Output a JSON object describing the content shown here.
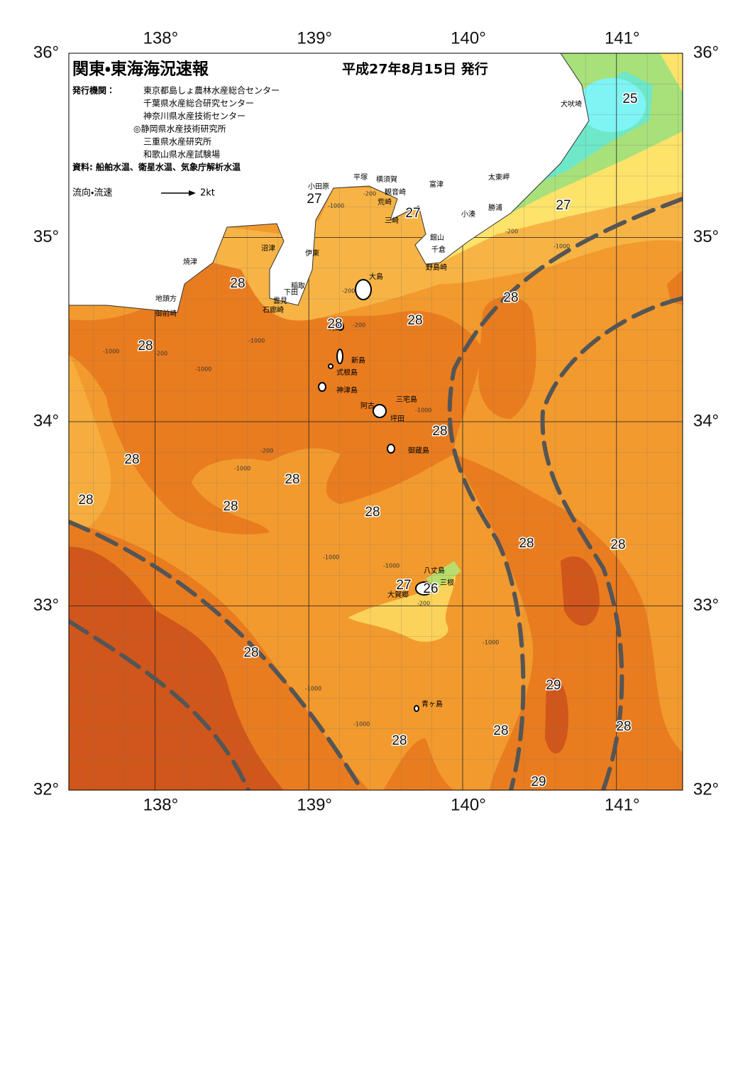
{
  "header": {
    "title": "関東・東海海況速報",
    "date": "平成27年8月15日 発行",
    "agency_label": "発行機関：",
    "agencies": [
      "東京都島しょ農林水産総合センター",
      "千葉県水産総合研究センター",
      "神奈川県水産技術センター",
      "◎静岡県水産技術研究所",
      "三重県水産研究所",
      "和歌山県水産試験場"
    ],
    "source": "資料: 船舶水温、衛星水温、気象庁解析水温",
    "legend_label": "流向・流速",
    "legend_speed": "2kt"
  },
  "axes": {
    "lon_range": [
      137.44,
      141.43
    ],
    "lat_range": [
      32,
      36
    ],
    "lon_ticks": [
      {
        "value": 138,
        "label": "138°"
      },
      {
        "value": 139,
        "label": "139°"
      },
      {
        "value": 140,
        "label": "140°"
      },
      {
        "value": 141,
        "label": "141°"
      }
    ],
    "lat_ticks": [
      {
        "value": 32,
        "label": "32°"
      },
      {
        "value": 33,
        "label": "33°"
      },
      {
        "value": 34,
        "label": "34°"
      },
      {
        "value": 35,
        "label": "35°"
      },
      {
        "value": 36,
        "label": "36°"
      }
    ]
  },
  "place_names": [
    "犬吠埼",
    "太東岬",
    "富津",
    "横須賀",
    "平塚",
    "小田原",
    "観音崎",
    "荒崎",
    "三崎",
    "勝浦",
    "小湊",
    "館山",
    "千倉",
    "野島崎",
    "沼津",
    "伊東",
    "焼津",
    "大島",
    "稲取",
    "下田",
    "雲見",
    "石廊崎",
    "地頭方",
    "御前崎",
    "利島",
    "新島",
    "式根島",
    "神津島",
    "三宅島",
    "阿古",
    "坪田",
    "御蔵島",
    "八丈島",
    "三根",
    "大賀郷",
    "青ヶ島"
  ],
  "temperature_labels": [
    25,
    27,
    27,
    27,
    28,
    28,
    28,
    28,
    28,
    28,
    28,
    28,
    28,
    28,
    28,
    28,
    28,
    27,
    26,
    28,
    29,
    28,
    28,
    28,
    29
  ],
  "depth_labels": [
    -1000,
    -200,
    -200,
    -1000,
    -1000,
    -200,
    -1000,
    -1000,
    -200,
    -200,
    -200,
    -1000,
    -1000,
    -1000,
    -1000,
    -200,
    -1000,
    -1000,
    -1000
  ]
}
